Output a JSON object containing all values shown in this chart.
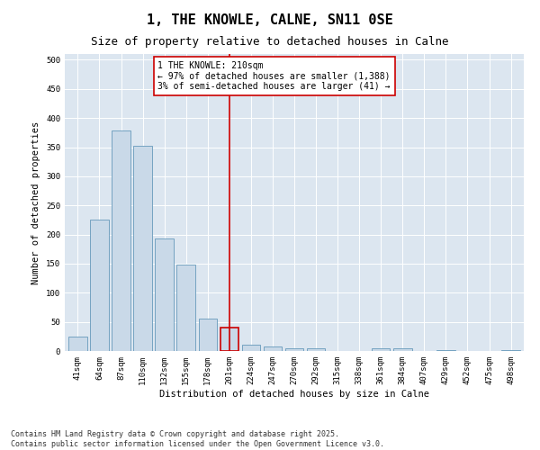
{
  "title": "1, THE KNOWLE, CALNE, SN11 0SE",
  "subtitle": "Size of property relative to detached houses in Calne",
  "xlabel": "Distribution of detached houses by size in Calne",
  "ylabel": "Number of detached properties",
  "bar_labels": [
    "41sqm",
    "64sqm",
    "87sqm",
    "110sqm",
    "132sqm",
    "155sqm",
    "178sqm",
    "201sqm",
    "224sqm",
    "247sqm",
    "270sqm",
    "292sqm",
    "315sqm",
    "338sqm",
    "361sqm",
    "384sqm",
    "407sqm",
    "429sqm",
    "452sqm",
    "475sqm",
    "498sqm"
  ],
  "bar_values": [
    25,
    225,
    378,
    352,
    193,
    148,
    55,
    40,
    11,
    7,
    5,
    4,
    0,
    0,
    4,
    4,
    0,
    2,
    0,
    0,
    2
  ],
  "bar_color": "#c9d9e8",
  "bar_edgecolor": "#6699bb",
  "highlight_bar_index": 7,
  "highlight_bar_edgecolor": "#cc0000",
  "vline_x": 7,
  "vline_color": "#cc0000",
  "annotation_text": "1 THE KNOWLE: 210sqm\n← 97% of detached houses are smaller (1,388)\n3% of semi-detached houses are larger (41) →",
  "annotation_box_facecolor": "#ffffff",
  "annotation_box_edgecolor": "#cc0000",
  "ylim": [
    0,
    510
  ],
  "yticks": [
    0,
    50,
    100,
    150,
    200,
    250,
    300,
    350,
    400,
    450,
    500
  ],
  "background_color": "#dce6f0",
  "footer_text": "Contains HM Land Registry data © Crown copyright and database right 2025.\nContains public sector information licensed under the Open Government Licence v3.0.",
  "title_fontsize": 11,
  "subtitle_fontsize": 9,
  "axis_label_fontsize": 7.5,
  "tick_fontsize": 6.5,
  "annotation_fontsize": 7,
  "footer_fontsize": 6
}
